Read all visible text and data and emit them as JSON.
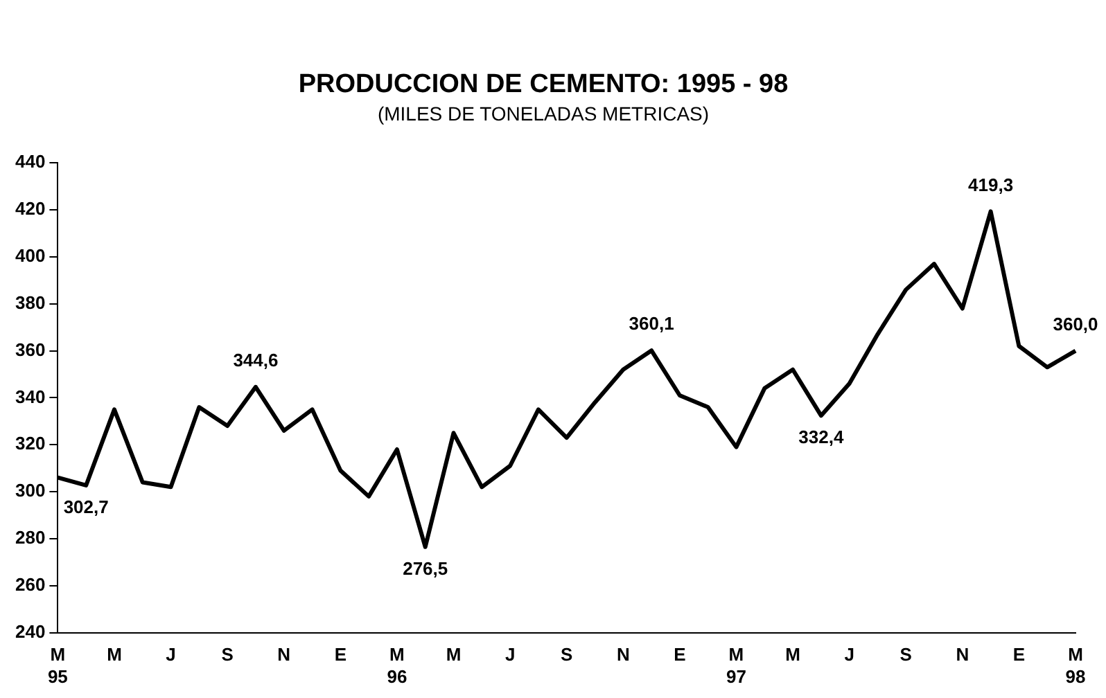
{
  "chart_data": {
    "type": "line",
    "title": "PRODUCCION DE CEMENTO: 1995 - 98",
    "subtitle": "(MILES DE TONELADAS METRICAS)",
    "categories": [
      "M\n95",
      null,
      "M",
      null,
      "J",
      null,
      "S",
      null,
      "N",
      null,
      "E",
      null,
      "M\n96",
      null,
      "M",
      null,
      "J",
      null,
      "S",
      null,
      "N",
      null,
      "E",
      null,
      "M\n97",
      null,
      "M",
      null,
      "J",
      null,
      "S",
      null,
      "N",
      null,
      "E",
      null,
      "M\n98"
    ],
    "series": [
      {
        "color": "#000000",
        "values": [
          306,
          302.7,
          335,
          304,
          302,
          336,
          328,
          344.6,
          326,
          335,
          309,
          298,
          318,
          276.5,
          325,
          302,
          311,
          335,
          323,
          338,
          352,
          360.1,
          341,
          336,
          319,
          344,
          352,
          332.4,
          346,
          367,
          386,
          397,
          378,
          419.3,
          362,
          353,
          360.0
        ],
        "value_labels": [
          null,
          "302,7",
          null,
          null,
          null,
          null,
          null,
          "344,6",
          null,
          null,
          null,
          null,
          null,
          "276,5",
          null,
          null,
          null,
          null,
          null,
          null,
          null,
          "360,1",
          null,
          null,
          null,
          null,
          null,
          "332,4",
          null,
          null,
          null,
          null,
          null,
          "419,3",
          null,
          null,
          "360,0"
        ]
      }
    ],
    "ylim": [
      240,
      440
    ],
    "yticks": [
      240,
      260,
      280,
      300,
      320,
      340,
      360,
      380,
      400,
      420,
      440
    ],
    "grid": false,
    "legend": false,
    "marker": "none",
    "line_style": "solid"
  }
}
